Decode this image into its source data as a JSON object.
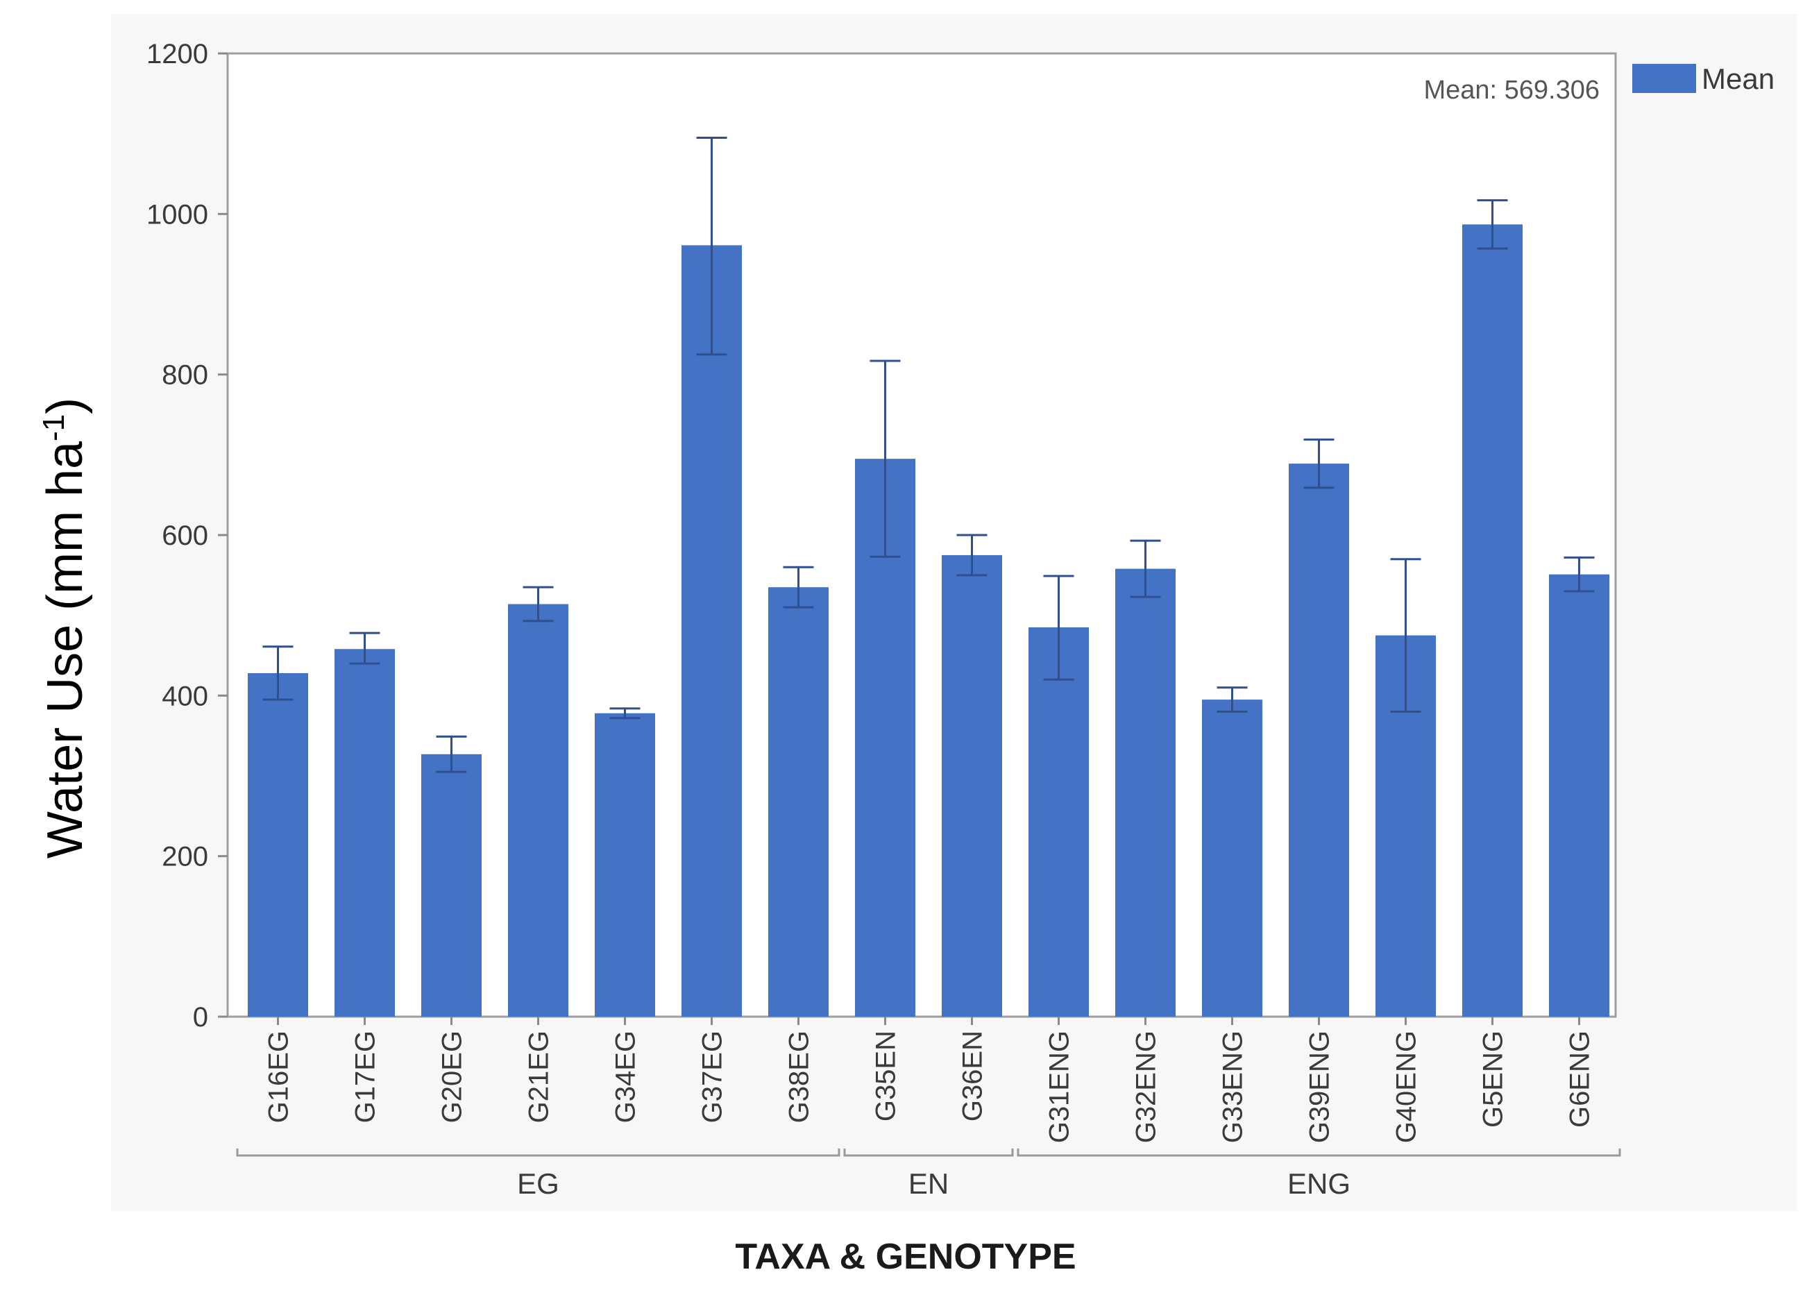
{
  "chart_data": {
    "type": "bar",
    "title": "",
    "xlabel": "TAXA & GENOTYPE",
    "ylabel": "Water Use (mm ha",
    "ylabel_superscript": "-1",
    "ylabel_close": ")",
    "ylim": [
      0,
      1200
    ],
    "yticks": [
      0,
      200,
      400,
      600,
      800,
      1000,
      1200
    ],
    "grid": false,
    "categories": [
      "G16EG",
      "G17EG",
      "G20EG",
      "G21EG",
      "G34EG",
      "G37EG",
      "G38EG",
      "G35EN",
      "G36EN",
      "G31ENG",
      "G32ENG",
      "G33ENG",
      "G39ENG",
      "G40ENG",
      "G5ENG",
      "G6ENG"
    ],
    "series": [
      {
        "name": "Mean",
        "color": "#4472c4",
        "values": [
          428,
          458,
          327,
          514,
          378,
          961,
          535,
          695,
          575,
          485,
          558,
          395,
          689,
          475,
          987,
          551
        ],
        "error_low": [
          395,
          440,
          305,
          493,
          372,
          825,
          510,
          573,
          550,
          420,
          523,
          380,
          659,
          380,
          957,
          530
        ],
        "error_high": [
          461,
          478,
          349,
          535,
          384,
          1095,
          560,
          817,
          600,
          549,
          593,
          410,
          719,
          570,
          1017,
          572
        ]
      }
    ],
    "groups": [
      {
        "label": "EG",
        "start": 0,
        "end": 6
      },
      {
        "label": "EN",
        "start": 7,
        "end": 8
      },
      {
        "label": "ENG",
        "start": 9,
        "end": 15
      }
    ],
    "reference_line": {
      "label": "Mean: 569.306",
      "value": 569.306
    },
    "legend": {
      "position": "top-right",
      "entries": [
        "Mean"
      ]
    }
  }
}
